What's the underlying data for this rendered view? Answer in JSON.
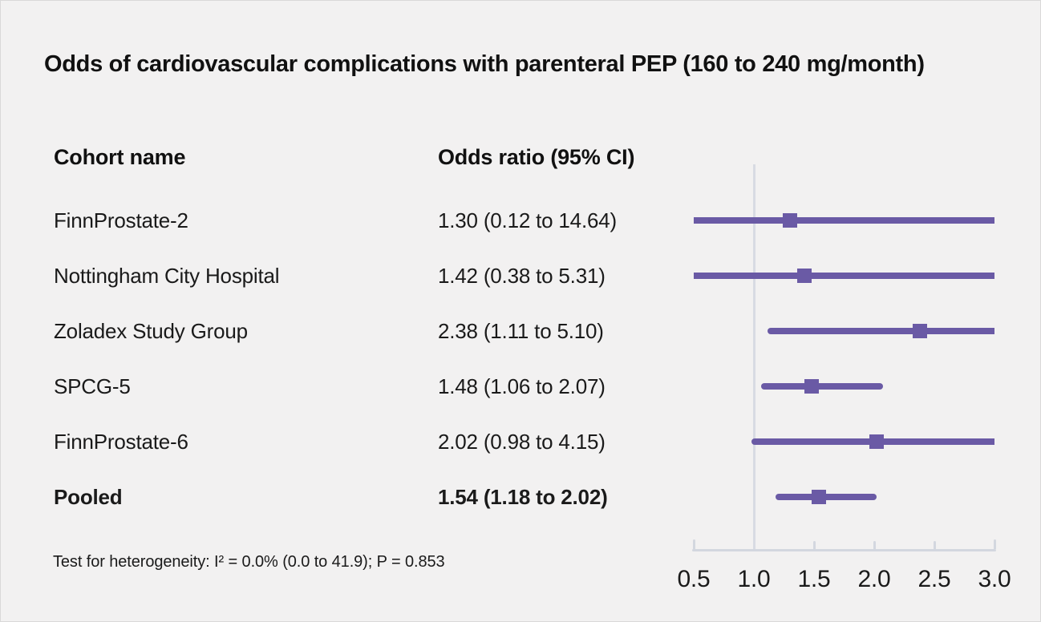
{
  "title": "Odds of cardiovascular complications with parenteral PEP (160 to 240 mg/month)",
  "table": {
    "cohort_header": "Cohort name",
    "or_header": "Odds ratio (95% CI)",
    "rows": [
      {
        "name": "FinnProstate-2",
        "or_text": "1.30 (0.12 to 14.64)"
      },
      {
        "name": "Nottingham City Hospital",
        "or_text": "1.42 (0.38 to 5.31)"
      },
      {
        "name": "Zoladex Study Group",
        "or_text": "2.38 (1.11 to 5.10)"
      },
      {
        "name": "SPCG-5",
        "or_text": "1.48 (1.06 to 2.07)"
      },
      {
        "name": "FinnProstate-6",
        "or_text": "2.02 (0.98 to 4.15)"
      },
      {
        "name": "Pooled",
        "or_text": "1.54 (1.18 to 2.02)"
      }
    ]
  },
  "footnote": "Test for heterogeneity: I² = 0.0% (0.0 to 41.9); P = 0.853",
  "chart_data": {
    "type": "scatter",
    "subtype": "forest-plot",
    "title": "Odds of cardiovascular complications with parenteral PEP (160 to 240 mg/month)",
    "xlabel": "",
    "ylabel": "",
    "x_range": [
      0.5,
      3.0
    ],
    "x_ticks": [
      0.5,
      1.0,
      1.5,
      2.0,
      2.5,
      3.0
    ],
    "x_tick_labels": [
      "0.5",
      "1.0",
      "1.5",
      "2.0",
      "2.5",
      "3.0"
    ],
    "reference_line_x": 1.0,
    "grid": false,
    "legend": false,
    "series": [
      {
        "name": "FinnProstate-2",
        "odds_ratio": 1.3,
        "ci_low": 0.12,
        "ci_high": 14.64,
        "pooled": false
      },
      {
        "name": "Nottingham City Hospital",
        "odds_ratio": 1.42,
        "ci_low": 0.38,
        "ci_high": 5.31,
        "pooled": false
      },
      {
        "name": "Zoladex Study Group",
        "odds_ratio": 2.38,
        "ci_low": 1.11,
        "ci_high": 5.1,
        "pooled": false
      },
      {
        "name": "SPCG-5",
        "odds_ratio": 1.48,
        "ci_low": 1.06,
        "ci_high": 2.07,
        "pooled": false
      },
      {
        "name": "FinnProstate-6",
        "odds_ratio": 2.02,
        "ci_low": 0.98,
        "ci_high": 4.15,
        "pooled": false
      },
      {
        "name": "Pooled",
        "odds_ratio": 1.54,
        "ci_low": 1.18,
        "ci_high": 2.02,
        "pooled": true
      }
    ],
    "heterogeneity_note": "Test for heterogeneity: I² = 0.0% (0.0 to 41.9); P = 0.853"
  },
  "colors": {
    "marker_purple": "#6a5aa5",
    "reference_line": "#d8dbe3",
    "axis_line": "#d3d7df",
    "background": "#f2f1f1",
    "text": "#1a1a1a"
  }
}
